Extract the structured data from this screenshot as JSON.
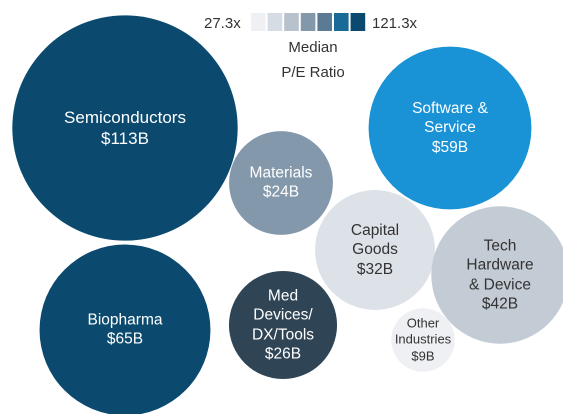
{
  "chart_data": {
    "type": "bubble",
    "categories": [
      "Semiconductors",
      "Software &\nService",
      "Materials",
      "Capital\nGoods",
      "Tech\nHardware\n& Device",
      "Biopharma",
      "Med\nDevices/\nDX/Tools",
      "Other\nIndustries"
    ],
    "values": [
      113,
      59,
      24,
      32,
      42,
      65,
      26,
      9
    ],
    "value_labels": [
      "$113B",
      "$59B",
      "$24B",
      "$32B",
      "$42B",
      "$65B",
      "$26B",
      "$9B"
    ],
    "colors": [
      "#0b4a6e",
      "#1a93d6",
      "#8498ac",
      "#dde2e8",
      "#c3ccd5",
      "#0b4a6e",
      "#2f4454",
      "#eef0f3"
    ],
    "legend": {
      "title": "Median\nP/E Ratio",
      "min_label": "27.3x",
      "max_label": "121.3x",
      "colors": [
        "#eef0f3",
        "#d6dce3",
        "#b7c2cd",
        "#8498ac",
        "#5b7a93",
        "#1a6a98",
        "#0b4a6e"
      ]
    }
  }
}
